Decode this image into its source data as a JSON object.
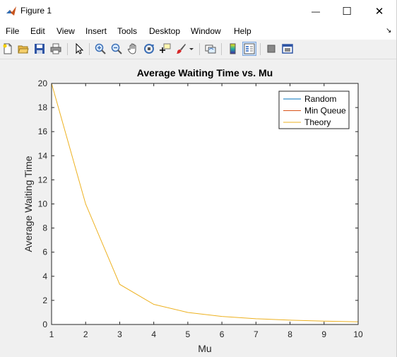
{
  "window": {
    "title": "Figure 1",
    "minimize_glyph": "—",
    "maximize_glyph": "☐",
    "close_glyph": "✕"
  },
  "menu": {
    "items": [
      "File",
      "Edit",
      "View",
      "Insert",
      "Tools",
      "Desktop",
      "Window",
      "Help"
    ],
    "corner_glyph": "↘"
  },
  "toolbar": {
    "icons": [
      "new-figure-icon",
      "open-file-icon",
      "save-icon",
      "print-icon",
      "pointer-icon",
      "zoom-in-icon",
      "zoom-out-icon",
      "pan-hand-icon",
      "rotate-3d-icon",
      "data-cursor-icon",
      "brush-icon",
      "dropdown-arrow-icon",
      "link-plot-icon",
      "colorbar-icon",
      "legend-icon",
      "hide-plot-tools-icon",
      "show-plot-tools-icon"
    ],
    "colors": {
      "brush": "#d62728",
      "legend_active": "#1f5fbf"
    }
  },
  "chart_data": {
    "type": "line",
    "title": "Average Waiting Time vs. Mu",
    "xlabel": "Mu",
    "ylabel": "Average Waiting Time",
    "xlim": [
      1,
      10
    ],
    "ylim": [
      0,
      20
    ],
    "xticks": [
      1,
      2,
      3,
      4,
      5,
      6,
      7,
      8,
      9,
      10
    ],
    "yticks": [
      0,
      2,
      4,
      6,
      8,
      10,
      12,
      14,
      16,
      18,
      20
    ],
    "grid": false,
    "legend_position": "top-right",
    "x": [
      1,
      2,
      3,
      4,
      5,
      6,
      7,
      8,
      9,
      10
    ],
    "series": [
      {
        "name": "Random",
        "color": "#0072bd",
        "values": [
          0,
          0,
          0,
          0,
          0,
          0,
          0,
          0,
          0,
          0
        ]
      },
      {
        "name": "Min Queue",
        "color": "#d95319",
        "values": [
          0,
          0,
          0,
          0,
          0,
          0,
          0,
          0,
          0,
          0
        ]
      },
      {
        "name": "Theory",
        "color": "#edb120",
        "values": [
          20,
          10,
          3.33,
          1.67,
          1.0,
          0.67,
          0.48,
          0.36,
          0.28,
          0.22
        ]
      }
    ]
  }
}
